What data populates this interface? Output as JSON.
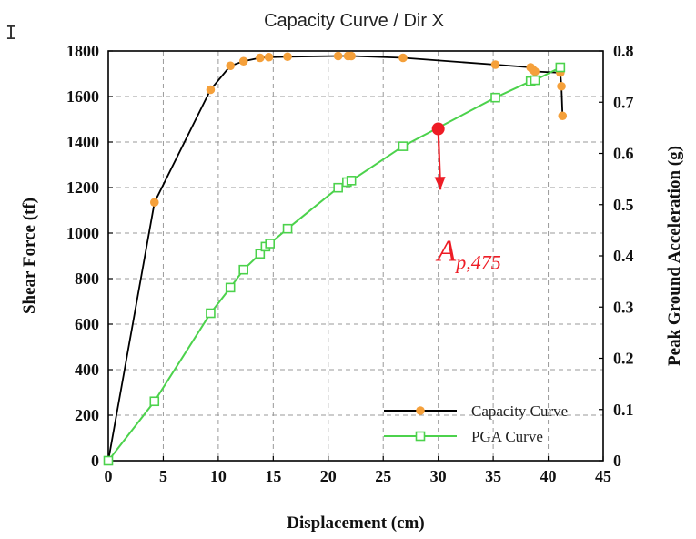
{
  "chart_data": {
    "type": "line",
    "title": "Capacity Curve / Dir X",
    "xlabel": "Displacement (cm)",
    "ylabel_left": "Shear Force (tf)",
    "ylabel_right": "Peak Ground Acceleration (g)",
    "xlim": [
      0,
      45
    ],
    "ylim_left": [
      0,
      1800
    ],
    "ylim_right": [
      0,
      0.8
    ],
    "x_ticks": [
      0,
      5,
      10,
      15,
      20,
      25,
      30,
      35,
      40,
      45
    ],
    "y_left_ticks": [
      0,
      200,
      400,
      600,
      800,
      1000,
      1200,
      1400,
      1600,
      1800
    ],
    "y_right_ticks": [
      0,
      0.1,
      0.2,
      0.3,
      0.4,
      0.5,
      0.6,
      0.7,
      0.8
    ],
    "y_right_tick_labels": [
      "0",
      "0.1",
      "0.2",
      "0.3",
      "0.4",
      "0.5",
      "0.6",
      "0.7",
      "0.8"
    ],
    "grid": true,
    "legend_position": "bottom-right",
    "series": [
      {
        "name": "Capacity Curve",
        "axis": "left",
        "color": "#000000",
        "marker_color": "#f5a03a",
        "marker": "circle",
        "points": [
          [
            0,
            0
          ],
          [
            4.2,
            1135
          ],
          [
            9.3,
            1630
          ],
          [
            11.1,
            1735
          ],
          [
            12.3,
            1755
          ],
          [
            13.8,
            1770
          ],
          [
            14.6,
            1773
          ],
          [
            16.3,
            1775
          ],
          [
            20.9,
            1778
          ],
          [
            21.8,
            1778
          ],
          [
            22.1,
            1778
          ],
          [
            26.8,
            1770
          ],
          [
            35.2,
            1740
          ],
          [
            38.4,
            1728
          ],
          [
            38.6,
            1718
          ],
          [
            38.8,
            1710
          ],
          [
            41.1,
            1705
          ],
          [
            41.2,
            1645
          ],
          [
            41.3,
            1515
          ]
        ]
      },
      {
        "name": "PGA Curve",
        "axis": "right",
        "color": "#4cd24c",
        "marker": "square",
        "points": [
          [
            0,
            0
          ],
          [
            4.2,
            0.116
          ],
          [
            9.3,
            0.288
          ],
          [
            11.1,
            0.338
          ],
          [
            12.3,
            0.373
          ],
          [
            13.8,
            0.404
          ],
          [
            14.3,
            0.418
          ],
          [
            14.7,
            0.424
          ],
          [
            16.3,
            0.453
          ],
          [
            20.9,
            0.533
          ],
          [
            21.7,
            0.544
          ],
          [
            22.1,
            0.547
          ],
          [
            26.8,
            0.614
          ],
          [
            35.2,
            0.709
          ],
          [
            38.4,
            0.741
          ],
          [
            38.8,
            0.743
          ],
          [
            41.1,
            0.768
          ]
        ]
      }
    ],
    "annotation": {
      "label_main": "A",
      "label_sub": "p,475",
      "color": "#ee1c25",
      "point": [
        30.0,
        0.648
      ],
      "text_position": [
        30.2,
        0.515
      ]
    }
  }
}
